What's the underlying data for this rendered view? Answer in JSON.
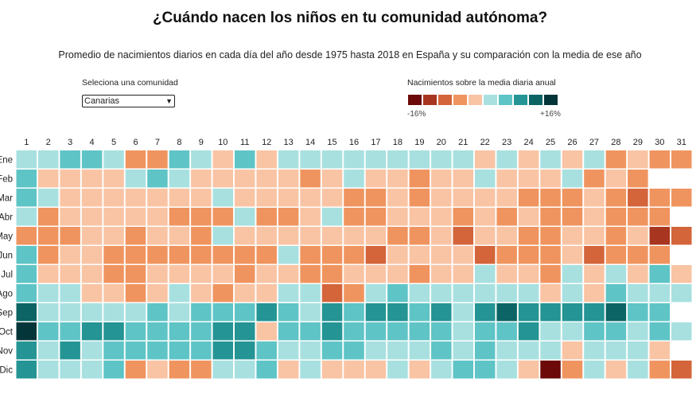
{
  "header": {
    "title": "¿Cuándo nacen los niños en tu comunidad autónoma?",
    "subtitle": "Promedio de nacimientos diarios en cada día del año desde 1975 hasta 2018 en España y su comparación con la media de ese año"
  },
  "selector": {
    "label": "Seleciona una comunidad",
    "value": "Canarias",
    "icon": "chevron-down-icon"
  },
  "legend": {
    "title": "Nacimientos sobre la media diaria anual",
    "min_label": "-16%",
    "max_label": "+16%",
    "colors": [
      "#6b0a08",
      "#a8351f",
      "#d4643a",
      "#f0945f",
      "#f9c4a4",
      "#a8e0e0",
      "#5ec4c6",
      "#249494",
      "#0c6464",
      "#043538"
    ]
  },
  "chart_data": {
    "type": "heatmap",
    "x_labels": [
      "1",
      "2",
      "3",
      "4",
      "5",
      "6",
      "7",
      "8",
      "9",
      "10",
      "11",
      "12",
      "13",
      "14",
      "15",
      "16",
      "17",
      "18",
      "19",
      "20",
      "21",
      "22",
      "23",
      "24",
      "25",
      "26",
      "27",
      "28",
      "29",
      "30",
      "31"
    ],
    "y_labels": [
      "Ene",
      "Feb",
      "Mar",
      "Abr",
      "May",
      "Jun",
      "Jul",
      "Ago",
      "Sep",
      "Oct",
      "Nov",
      "Dic"
    ],
    "value_range": [
      -16,
      16
    ],
    "unit": "%",
    "values": [
      [
        1.6,
        1.6,
        4.8,
        4.8,
        1.6,
        -4.8,
        -4.8,
        4.8,
        1.6,
        -1.6,
        4.8,
        -1.6,
        1.6,
        1.6,
        1.6,
        1.6,
        1.6,
        1.6,
        1.6,
        1.6,
        1.6,
        -1.6,
        1.6,
        -1.6,
        1.6,
        -1.6,
        1.6,
        -4.8,
        -1.6,
        -4.8,
        -4.8
      ],
      [
        4.8,
        -1.6,
        -1.6,
        -1.6,
        -1.6,
        1.6,
        4.8,
        1.6,
        -1.6,
        -1.6,
        -1.6,
        -1.6,
        -1.6,
        -4.8,
        -1.6,
        1.6,
        -1.6,
        -1.6,
        -4.8,
        -1.6,
        -1.6,
        1.6,
        -1.6,
        -1.6,
        -1.6,
        1.6,
        -4.8,
        -1.6,
        -4.8,
        null,
        null
      ],
      [
        4.8,
        1.6,
        -1.6,
        -1.6,
        -1.6,
        -1.6,
        -1.6,
        -1.6,
        -1.6,
        1.6,
        -1.6,
        -1.6,
        -1.6,
        -1.6,
        -1.6,
        -4.8,
        -4.8,
        -1.6,
        -4.8,
        -1.6,
        -1.6,
        -1.6,
        -1.6,
        -4.8,
        -4.8,
        -4.8,
        -1.6,
        -4.8,
        -8,
        -4.8,
        -4.8
      ],
      [
        1.6,
        -4.8,
        -1.6,
        -1.6,
        -1.6,
        -1.6,
        -1.6,
        -4.8,
        -4.8,
        -4.8,
        1.6,
        -4.8,
        -4.8,
        -1.6,
        1.6,
        -4.8,
        -4.8,
        -1.6,
        -1.6,
        -1.6,
        -4.8,
        -1.6,
        -4.8,
        -1.6,
        -4.8,
        -4.8,
        -1.6,
        -4.8,
        -4.8,
        -4.8,
        null
      ],
      [
        -4.8,
        -4.8,
        -4.8,
        -1.6,
        -1.6,
        -4.8,
        -1.6,
        -1.6,
        -4.8,
        1.6,
        -1.6,
        -1.6,
        -1.6,
        -1.6,
        -1.6,
        -1.6,
        -1.6,
        -4.8,
        -4.8,
        -1.6,
        -8,
        -1.6,
        -1.6,
        -4.8,
        -4.8,
        -1.6,
        -1.6,
        -4.8,
        -1.6,
        -11.2,
        -8
      ],
      [
        4.8,
        -4.8,
        -1.6,
        -1.6,
        -4.8,
        -4.8,
        -4.8,
        -4.8,
        -4.8,
        -4.8,
        -4.8,
        -4.8,
        1.6,
        -4.8,
        -4.8,
        -4.8,
        -8,
        -1.6,
        -1.6,
        -1.6,
        -1.6,
        -8,
        -4.8,
        -4.8,
        -4.8,
        -1.6,
        -8,
        -4.8,
        -4.8,
        -4.8,
        null
      ],
      [
        4.8,
        -1.6,
        -1.6,
        -1.6,
        -4.8,
        -4.8,
        -1.6,
        -1.6,
        -1.6,
        -1.6,
        -4.8,
        -1.6,
        -1.6,
        -4.8,
        -4.8,
        -1.6,
        -1.6,
        -1.6,
        -4.8,
        -1.6,
        -1.6,
        1.6,
        -1.6,
        -1.6,
        -4.8,
        1.6,
        -1.6,
        1.6,
        -1.6,
        4.8,
        -1.6
      ],
      [
        4.8,
        1.6,
        1.6,
        -1.6,
        -1.6,
        -4.8,
        -1.6,
        1.6,
        -1.6,
        -4.8,
        -1.6,
        -1.6,
        1.6,
        1.6,
        -8,
        -4.8,
        1.6,
        4.8,
        1.6,
        1.6,
        1.6,
        1.6,
        1.6,
        1.6,
        -1.6,
        1.6,
        -1.6,
        4.8,
        1.6,
        1.6,
        1.6
      ],
      [
        11.2,
        1.6,
        1.6,
        1.6,
        1.6,
        1.6,
        4.8,
        1.6,
        4.8,
        4.8,
        4.8,
        8,
        4.8,
        1.6,
        8,
        4.8,
        8,
        8,
        4.8,
        8,
        1.6,
        8,
        11.2,
        8,
        8,
        8,
        8,
        11.2,
        4.8,
        4.8,
        null
      ],
      [
        14.4,
        4.8,
        4.8,
        8,
        8,
        4.8,
        4.8,
        4.8,
        4.8,
        8,
        8,
        -1.6,
        4.8,
        4.8,
        8,
        4.8,
        4.8,
        4.8,
        4.8,
        4.8,
        1.6,
        4.8,
        4.8,
        8,
        1.6,
        1.6,
        4.8,
        4.8,
        1.6,
        4.8,
        1.6
      ],
      [
        8,
        1.6,
        8,
        1.6,
        4.8,
        4.8,
        4.8,
        4.8,
        4.8,
        8,
        8,
        4.8,
        1.6,
        1.6,
        4.8,
        4.8,
        1.6,
        1.6,
        1.6,
        4.8,
        1.6,
        4.8,
        1.6,
        1.6,
        1.6,
        -1.6,
        1.6,
        1.6,
        1.6,
        -1.6,
        null
      ],
      [
        8,
        1.6,
        1.6,
        1.6,
        4.8,
        -4.8,
        -1.6,
        -4.8,
        -4.8,
        1.6,
        1.6,
        4.8,
        -1.6,
        1.6,
        -1.6,
        -1.6,
        -1.6,
        1.6,
        -1.6,
        1.6,
        4.8,
        4.8,
        1.6,
        -1.6,
        -14.4,
        -4.8,
        1.6,
        -1.6,
        1.6,
        -4.8,
        -8
      ]
    ]
  }
}
